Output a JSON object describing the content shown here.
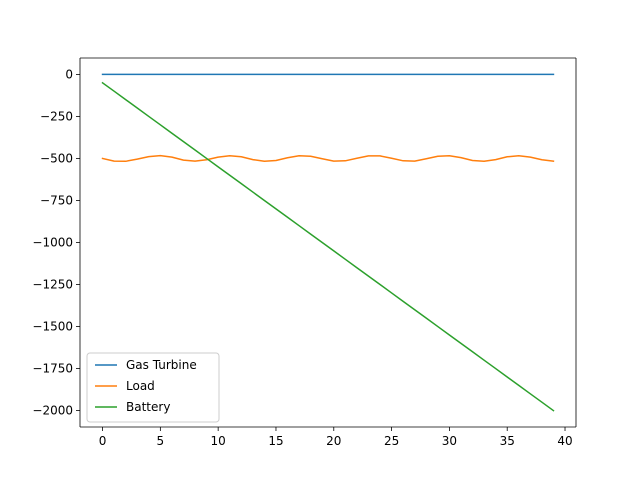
{
  "chart_data": {
    "type": "line",
    "title": "",
    "xlabel": "",
    "ylabel": "",
    "xlim": [
      -1.95,
      40.95
    ],
    "ylim": [
      -2097.5,
      97.5
    ],
    "xticks": [
      0,
      5,
      10,
      15,
      20,
      25,
      30,
      35,
      40
    ],
    "yticks": [
      0,
      -250,
      -500,
      -750,
      -1000,
      -1250,
      -1500,
      -1750,
      -2000
    ],
    "ytick_labels": [
      "0",
      "−250",
      "−500",
      "−750",
      "−1000",
      "−1250",
      "−1500",
      "−1750",
      "−2000"
    ],
    "grid": false,
    "legend_position": "lower-left",
    "x": [
      0,
      1,
      2,
      3,
      4,
      5,
      6,
      7,
      8,
      9,
      10,
      11,
      12,
      13,
      14,
      15,
      16,
      17,
      18,
      19,
      20,
      21,
      22,
      23,
      24,
      25,
      26,
      27,
      28,
      29,
      30,
      31,
      32,
      33,
      34,
      35,
      36,
      37,
      38,
      39
    ],
    "series": [
      {
        "name": "Gas Turbine",
        "color": "#1f77b4",
        "values": [
          0,
          0,
          0,
          0,
          0,
          0,
          0,
          0,
          0,
          0,
          0,
          0,
          0,
          0,
          0,
          0,
          0,
          0,
          0,
          0,
          0,
          0,
          0,
          0,
          0,
          0,
          0,
          0,
          0,
          0,
          0,
          0,
          0,
          0,
          0,
          0,
          0,
          0,
          0,
          0
        ]
      },
      {
        "name": "Load",
        "color": "#ff7f0e",
        "values": [
          -500,
          -516,
          -517,
          -504,
          -489,
          -483,
          -492,
          -510,
          -516,
          -508,
          -492,
          -484,
          -490,
          -507,
          -517,
          -512,
          -496,
          -484,
          -487,
          -502,
          -516,
          -514,
          -499,
          -485,
          -485,
          -499,
          -514,
          -516,
          -502,
          -487,
          -484,
          -495,
          -512,
          -517,
          -507,
          -490,
          -484,
          -492,
          -508,
          -516
        ]
      },
      {
        "name": "Battery",
        "color": "#2ca02c",
        "values": [
          -50,
          -100,
          -150,
          -200,
          -250,
          -300,
          -350,
          -400,
          -450,
          -500,
          -550,
          -600,
          -650,
          -700,
          -750,
          -800,
          -850,
          -900,
          -950,
          -1000,
          -1050,
          -1100,
          -1150,
          -1200,
          -1250,
          -1300,
          -1350,
          -1400,
          -1450,
          -1500,
          -1550,
          -1600,
          -1650,
          -1700,
          -1750,
          -1800,
          -1850,
          -1900,
          -1950,
          -2000
        ]
      }
    ]
  }
}
